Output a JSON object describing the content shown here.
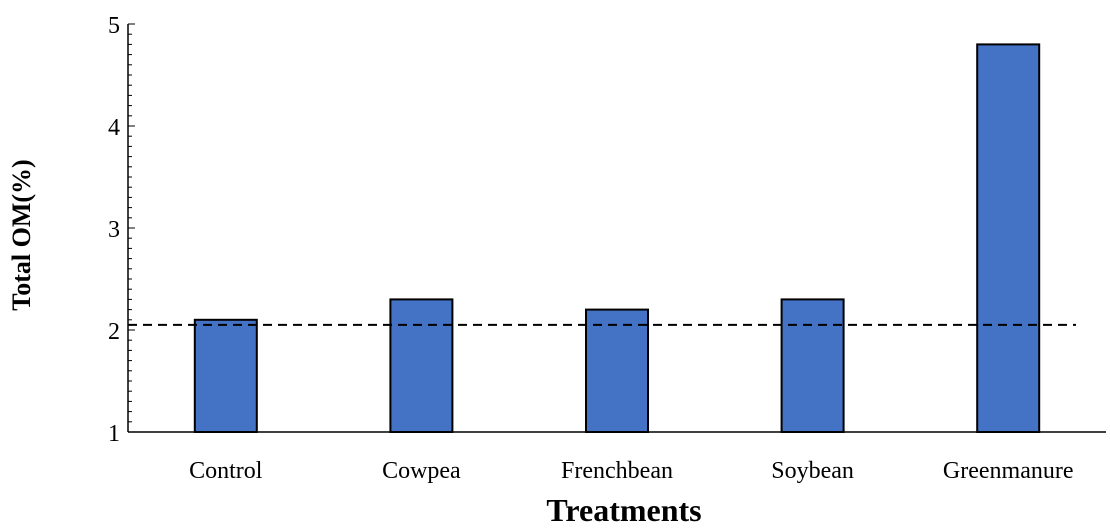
{
  "chart_data": {
    "type": "bar",
    "categories": [
      "Control",
      "Cowpea",
      "Frenchbean",
      "Soybean",
      "Greenmanure"
    ],
    "values": [
      2.1,
      2.3,
      2.2,
      2.3,
      4.8
    ],
    "xlabel": "Treatments",
    "ylabel": "Total OM(%)",
    "ylim": [
      1,
      5
    ],
    "yticks": [
      "1",
      "2",
      "3",
      "4",
      "5"
    ],
    "reference_line": {
      "value": 2.05,
      "style": "dashed"
    },
    "bar_color": "#4472C4",
    "bar_edge_color": "#000000",
    "grid": false
  }
}
